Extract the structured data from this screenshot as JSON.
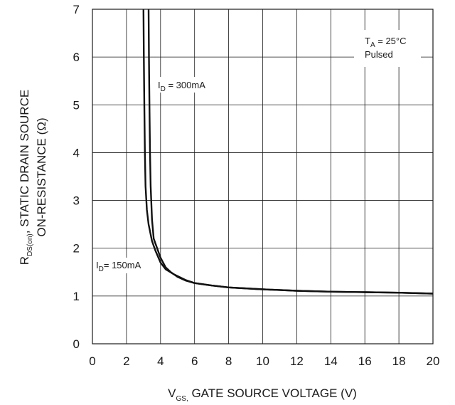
{
  "chart_data": {
    "type": "line",
    "xlabel": {
      "main": "V",
      "sub": "GS,",
      "rest": " GATE SOURCE VOLTAGE (V)"
    },
    "ylabel": {
      "line1": {
        "main": "R",
        "sub": "DS(on)",
        "rest": ", STATIC DRAIN SOURCE"
      },
      "line2": "ON-RESISTANCE (Ω)"
    },
    "xlim": [
      0,
      20
    ],
    "ylim": [
      0,
      7
    ],
    "xticks": [
      "0",
      "2",
      "4",
      "6",
      "8",
      "10",
      "12",
      "14",
      "16",
      "18",
      "20"
    ],
    "yticks": [
      "0",
      "1",
      "2",
      "3",
      "4",
      "5",
      "6",
      "7"
    ],
    "grid": true,
    "conditions": {
      "ta": {
        "main": "T",
        "sub": "A",
        "rest": " = 25°C"
      },
      "mode": "Pulsed"
    },
    "series": [
      {
        "name": {
          "main": "I",
          "sub": "D",
          "rest": " = 300mA"
        },
        "x": [
          3.3,
          3.32,
          3.35,
          3.38,
          3.42,
          3.5,
          3.6,
          3.8,
          4.0,
          4.3,
          4.6,
          5.0,
          5.5,
          6.0,
          7.0,
          8.0,
          10.0,
          12.0,
          14.0,
          16.0,
          18.0,
          20.0
        ],
        "y": [
          7.0,
          6.0,
          5.0,
          4.0,
          3.3,
          2.6,
          2.2,
          2.0,
          1.8,
          1.6,
          1.5,
          1.4,
          1.32,
          1.27,
          1.22,
          1.18,
          1.14,
          1.11,
          1.09,
          1.08,
          1.07,
          1.05
        ]
      },
      {
        "name": {
          "main": "I",
          "sub": "D",
          "rest": "= 150mA"
        },
        "x": [
          3.0,
          3.02,
          3.05,
          3.08,
          3.12,
          3.2,
          3.3,
          3.5,
          3.7,
          4.0,
          4.3,
          4.8,
          5.5,
          6.0,
          7.0,
          8.0,
          10.0,
          12.0,
          14.0,
          16.0,
          18.0,
          20.0
        ],
        "y": [
          7.0,
          6.0,
          5.0,
          4.0,
          3.3,
          2.8,
          2.5,
          2.15,
          1.95,
          1.7,
          1.56,
          1.45,
          1.33,
          1.27,
          1.22,
          1.18,
          1.14,
          1.11,
          1.09,
          1.08,
          1.07,
          1.05
        ]
      }
    ]
  }
}
